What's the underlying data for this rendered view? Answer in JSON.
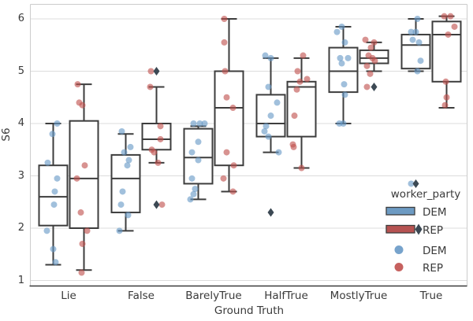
{
  "chart_data": {
    "type": "boxplot_strip",
    "xlabel": "Ground Truth",
    "ylabel": "S6",
    "yticks": [
      6,
      5,
      4,
      3,
      2,
      1
    ],
    "ylim": [
      0.87,
      6.29
    ],
    "grid": "horizontal",
    "categories": [
      "Lie",
      "False",
      "BarelyTrue",
      "HalfTrue",
      "MostlyTrue",
      "True"
    ],
    "legend": {
      "title": "worker_party",
      "position": "lower right",
      "entries": [
        {
          "type": "box",
          "label": "DEM",
          "color": "#6d9bc3"
        },
        {
          "type": "box",
          "label": "REP",
          "color": "#b65352",
          "flier_marker": true
        },
        {
          "type": "point",
          "label": "DEM",
          "color": "#6899c7"
        },
        {
          "type": "point",
          "label": "REP",
          "color": "#c0504e"
        }
      ]
    },
    "colors": {
      "box_face": "#ffffff",
      "box_edge": "#3d3d3d",
      "flier": "#3c4954",
      "grid": "#dcdcdc",
      "spine_light": "#cccccc",
      "spine_dark": "#3a3a3a",
      "text": "#3a3a3a",
      "dem_point": "#6899c7",
      "rep_point": "#c0504e"
    },
    "series": [
      {
        "name": "DEM",
        "point_color": "#6899c7",
        "point_opacity": 0.62,
        "boxes": [
          {
            "whislo": 1.3,
            "q1": 2.05,
            "med": 2.6,
            "q3": 3.2,
            "whishi": 4.0,
            "fliers": []
          },
          {
            "whislo": 1.95,
            "q1": 2.3,
            "med": 2.95,
            "q3": 3.4,
            "whishi": 3.8,
            "fliers": []
          },
          {
            "whislo": 2.55,
            "q1": 2.85,
            "med": 3.35,
            "q3": 3.9,
            "whishi": 3.95,
            "fliers": []
          },
          {
            "whislo": 3.45,
            "q1": 3.75,
            "med": 4.0,
            "q3": 4.55,
            "whishi": 5.25,
            "fliers": [
              2.3
            ]
          },
          {
            "whislo": 4.0,
            "q1": 4.6,
            "med": 5.0,
            "q3": 5.45,
            "whishi": 5.85,
            "fliers": []
          },
          {
            "whislo": 5.0,
            "q1": 5.05,
            "med": 5.5,
            "q3": 5.7,
            "whishi": 6.0,
            "fliers": [
              2.85
            ]
          }
        ],
        "points": [
          [
            [
              4.0,
              5
            ],
            [
              3.8,
              -1
            ],
            [
              3.25,
              -7
            ],
            [
              2.95,
              5
            ],
            [
              2.7,
              2
            ],
            [
              2.45,
              1
            ],
            [
              1.95,
              -8
            ],
            [
              1.6,
              0
            ],
            [
              1.35,
              3
            ]
          ],
          [
            [
              3.85,
              -5
            ],
            [
              3.55,
              6
            ],
            [
              3.45,
              -2
            ],
            [
              3.3,
              4
            ],
            [
              3.2,
              2
            ],
            [
              2.7,
              -4
            ],
            [
              2.45,
              -6
            ],
            [
              2.25,
              3
            ],
            [
              1.95,
              -8
            ]
          ],
          [
            [
              4.0,
              -6
            ],
            [
              4.0,
              2
            ],
            [
              4.0,
              8
            ],
            [
              3.65,
              0
            ],
            [
              3.45,
              -8
            ],
            [
              3.3,
              0
            ],
            [
              2.95,
              -8
            ],
            [
              2.75,
              -4
            ],
            [
              2.65,
              -6
            ],
            [
              2.55,
              -10
            ]
          ],
          [
            [
              5.3,
              -7
            ],
            [
              5.25,
              0
            ],
            [
              4.7,
              -3
            ],
            [
              4.4,
              8
            ],
            [
              4.15,
              0
            ],
            [
              3.95,
              -6
            ],
            [
              3.85,
              -8
            ],
            [
              3.75,
              -3
            ],
            [
              3.45,
              10
            ]
          ],
          [
            [
              5.85,
              -2
            ],
            [
              5.75,
              -8
            ],
            [
              5.55,
              2
            ],
            [
              5.25,
              -4
            ],
            [
              5.25,
              6
            ],
            [
              5.15,
              -2
            ],
            [
              4.75,
              1
            ],
            [
              4.55,
              2
            ],
            [
              4.0,
              -5
            ],
            [
              4.0,
              0
            ]
          ],
          [
            [
              6.0,
              2
            ],
            [
              5.75,
              -6
            ],
            [
              5.75,
              0
            ],
            [
              5.6,
              -4
            ],
            [
              5.55,
              4
            ],
            [
              5.2,
              6
            ],
            [
              5.0,
              2
            ],
            [
              2.85,
              -6
            ]
          ]
        ]
      },
      {
        "name": "REP",
        "point_color": "#c0504e",
        "point_opacity": 0.62,
        "boxes": [
          {
            "whislo": 1.2,
            "q1": 2.0,
            "med": 2.95,
            "q3": 4.05,
            "whishi": 4.75,
            "fliers": []
          },
          {
            "whislo": 3.25,
            "q1": 3.5,
            "med": 3.7,
            "q3": 4.0,
            "whishi": 4.7,
            "fliers": [
              5.0,
              2.45
            ]
          },
          {
            "whislo": 2.7,
            "q1": 3.2,
            "med": 4.3,
            "q3": 5.0,
            "whishi": 6.0,
            "fliers": []
          },
          {
            "whislo": 3.15,
            "q1": 3.75,
            "med": 4.7,
            "q3": 4.8,
            "whishi": 5.25,
            "fliers": []
          },
          {
            "whislo": 5.0,
            "q1": 5.15,
            "med": 5.25,
            "q3": 5.4,
            "whishi": 5.55,
            "fliers": [
              4.7
            ]
          },
          {
            "whislo": 4.3,
            "q1": 4.8,
            "med": 5.7,
            "q3": 5.95,
            "whishi": 6.05,
            "fliers": []
          }
        ],
        "points": [
          [
            [
              4.75,
              -8
            ],
            [
              4.4,
              -6
            ],
            [
              4.35,
              -2
            ],
            [
              3.2,
              1
            ],
            [
              2.95,
              -9
            ],
            [
              2.3,
              -4
            ],
            [
              1.95,
              4
            ],
            [
              1.7,
              -2
            ],
            [
              1.15,
              -3
            ]
          ],
          [
            [
              5.0,
              -7
            ],
            [
              4.7,
              -8
            ],
            [
              3.95,
              5
            ],
            [
              3.7,
              5
            ],
            [
              3.5,
              -6
            ],
            [
              3.45,
              -3
            ],
            [
              3.25,
              2
            ],
            [
              2.45,
              7
            ]
          ],
          [
            [
              6.0,
              -6
            ],
            [
              5.55,
              -6
            ],
            [
              5.0,
              -5
            ],
            [
              4.5,
              -3
            ],
            [
              4.3,
              5
            ],
            [
              3.45,
              -3
            ],
            [
              3.2,
              6
            ],
            [
              2.95,
              -7
            ],
            [
              2.7,
              5
            ]
          ],
          [
            [
              5.3,
              2
            ],
            [
              5.0,
              -5
            ],
            [
              4.85,
              7
            ],
            [
              4.8,
              -2
            ],
            [
              4.65,
              -6
            ],
            [
              4.15,
              -9
            ],
            [
              3.6,
              -11
            ],
            [
              3.55,
              -10
            ],
            [
              3.15,
              0
            ]
          ],
          [
            [
              5.6,
              -11
            ],
            [
              5.55,
              0
            ],
            [
              5.45,
              -4
            ],
            [
              5.3,
              -7
            ],
            [
              5.25,
              -2
            ],
            [
              5.2,
              1
            ],
            [
              5.1,
              -9
            ],
            [
              4.95,
              -5
            ],
            [
              4.7,
              -9
            ]
          ],
          [
            [
              6.05,
              -3
            ],
            [
              6.05,
              5
            ],
            [
              5.85,
              10
            ],
            [
              5.7,
              2
            ],
            [
              4.8,
              -1
            ],
            [
              4.5,
              0
            ],
            [
              4.35,
              -2
            ]
          ]
        ]
      }
    ]
  }
}
